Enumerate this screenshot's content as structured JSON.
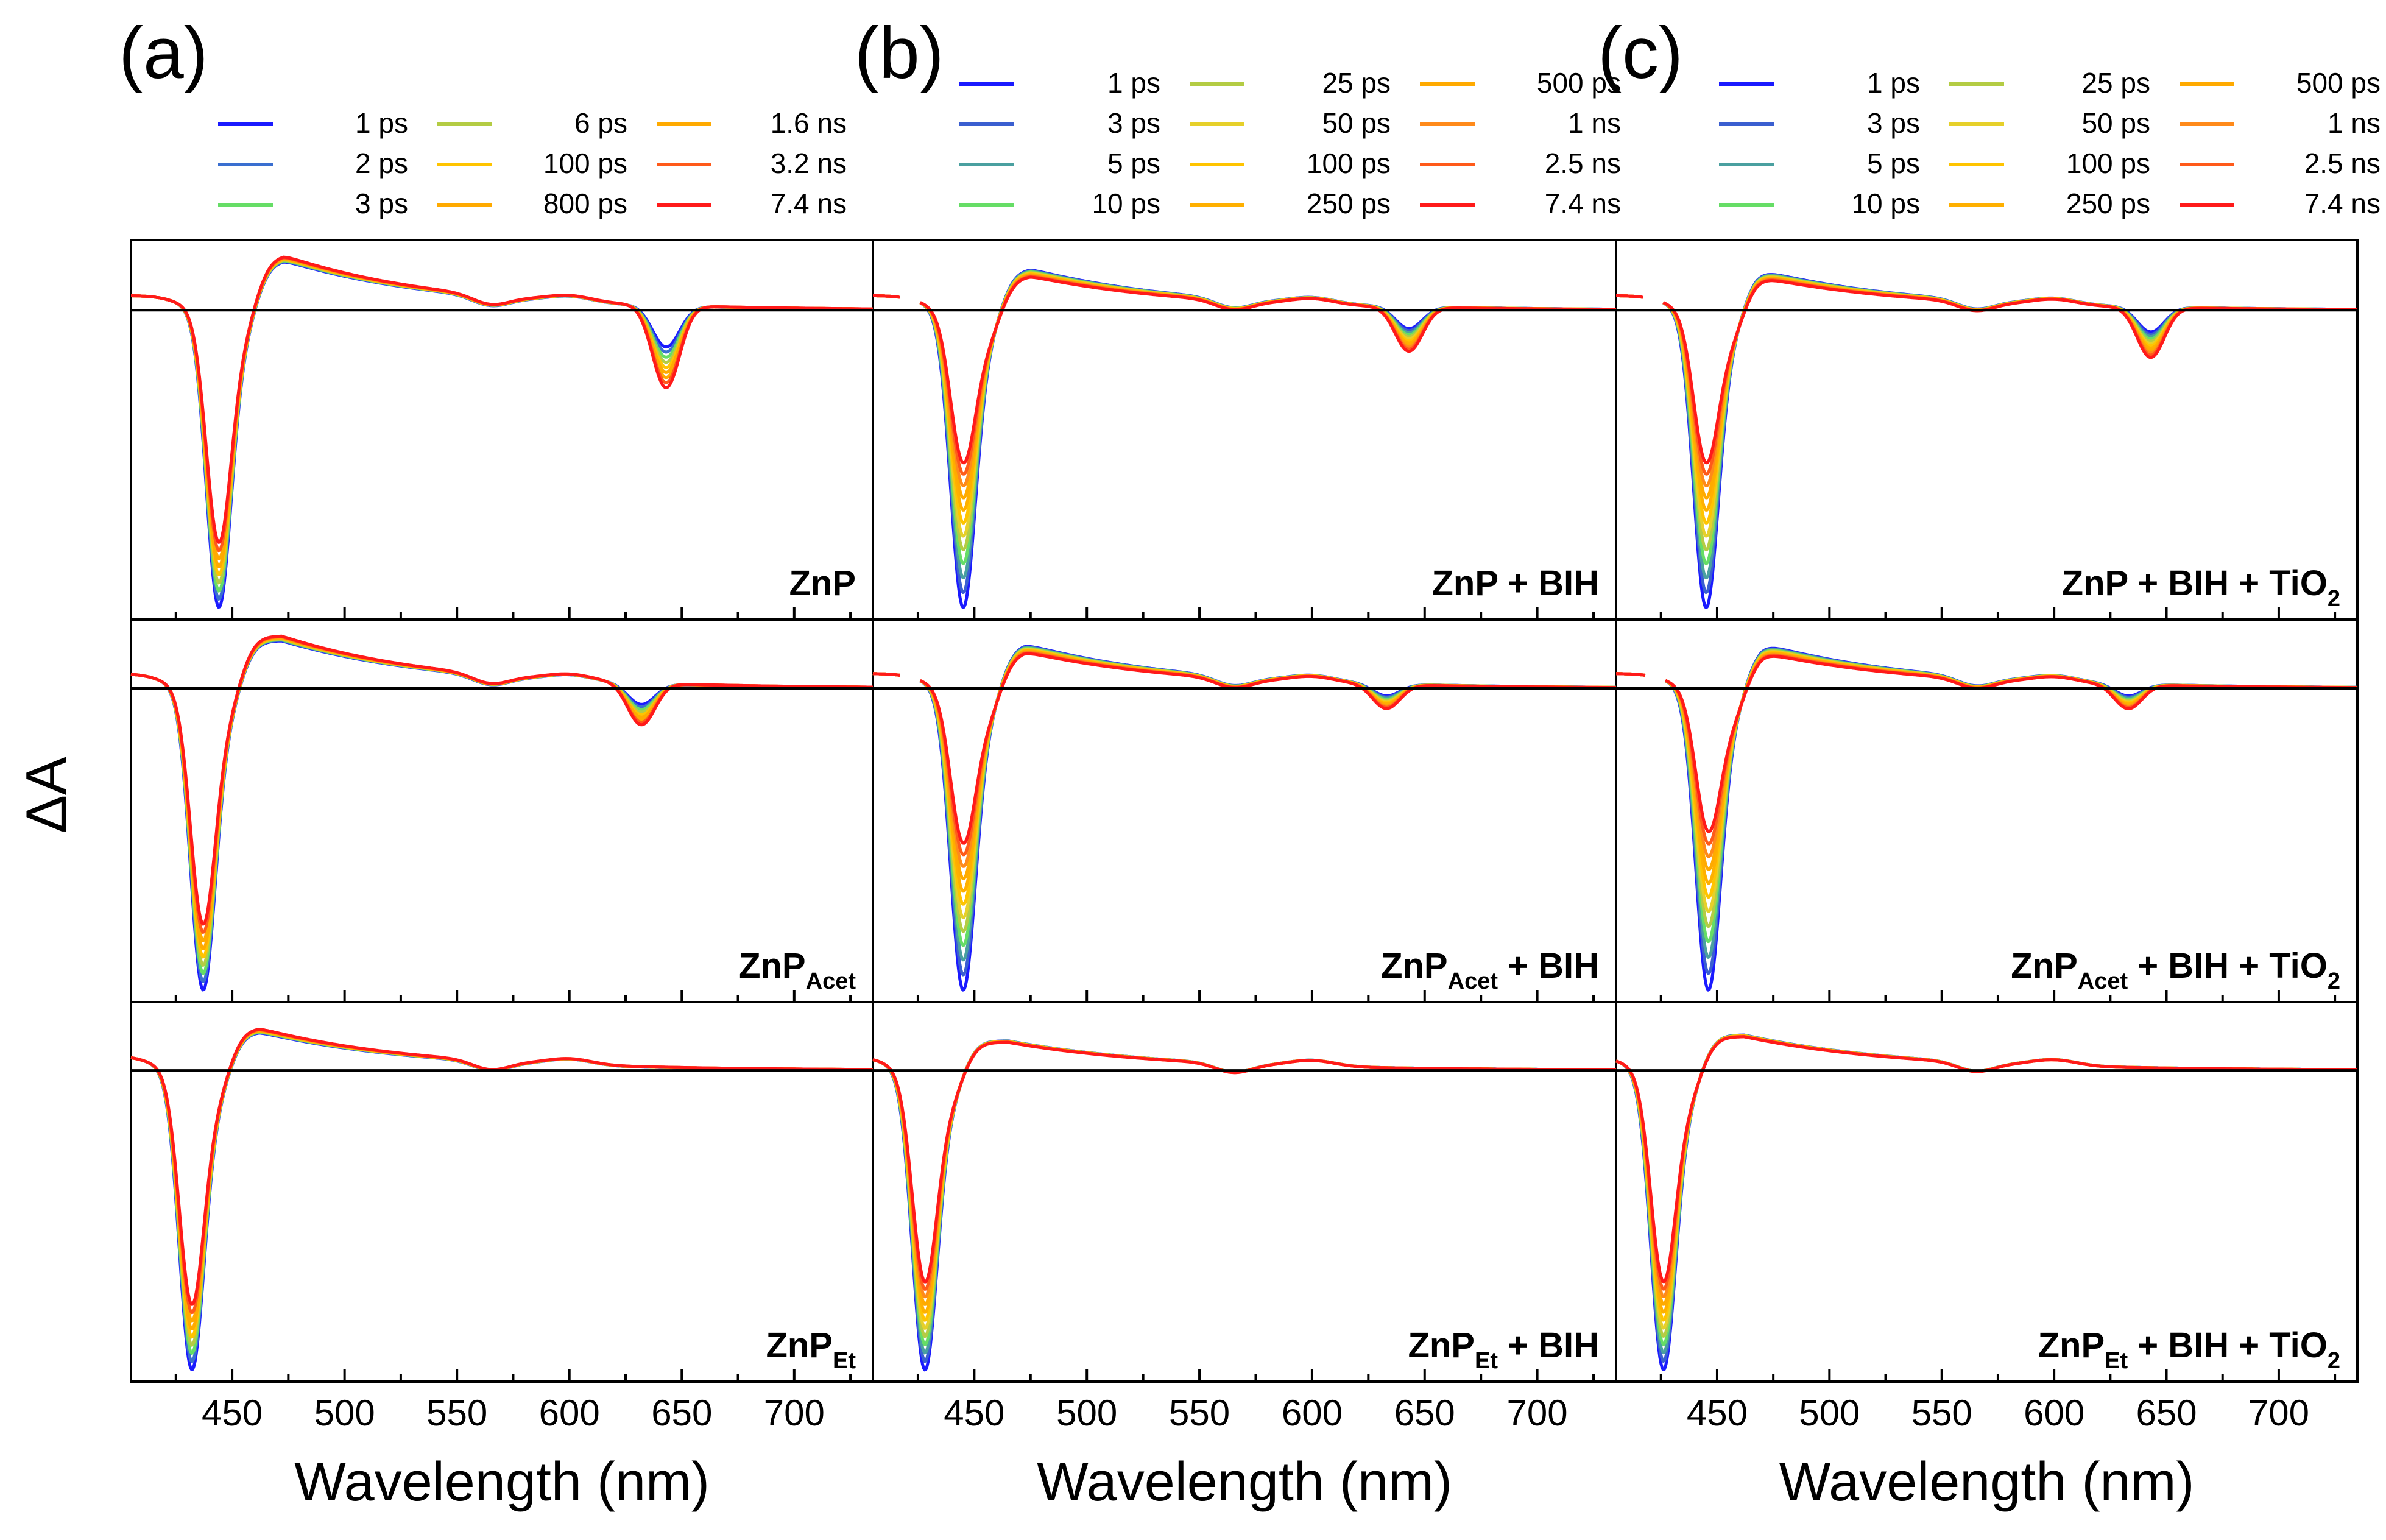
{
  "figure": {
    "y_axis_label": "ΔA",
    "panel_labels": [
      "(a)",
      "(b)",
      "(c)"
    ],
    "x_axis_title": "Wavelength (nm)"
  },
  "legends": [
    {
      "panel": "(a)",
      "entries": [
        {
          "label": "1 ps",
          "color": "#1a1aff"
        },
        {
          "label": "2 ps",
          "color": "#3a6fd0"
        },
        {
          "label": "3 ps",
          "color": "#66dd66"
        },
        {
          "label": "6 ps",
          "color": "#b4cc44"
        },
        {
          "label": "100 ps",
          "color": "#ffc400"
        },
        {
          "label": "800 ps",
          "color": "#ffaa00"
        },
        {
          "label": "1.6 ns",
          "color": "#ffaa00"
        },
        {
          "label": "3.2 ns",
          "color": "#ff5a1a"
        },
        {
          "label": "7.4 ns",
          "color": "#ff1a1a"
        }
      ]
    },
    {
      "panel": "(b)",
      "entries": [
        {
          "label": "1 ps",
          "color": "#1a1aff"
        },
        {
          "label": "3 ps",
          "color": "#3a5fd0"
        },
        {
          "label": "5 ps",
          "color": "#4aa0a0"
        },
        {
          "label": "10 ps",
          "color": "#66dd66"
        },
        {
          "label": "25 ps",
          "color": "#b4cc44"
        },
        {
          "label": "50 ps",
          "color": "#e6d02a"
        },
        {
          "label": "100 ps",
          "color": "#ffc400"
        },
        {
          "label": "250 ps",
          "color": "#ffb000"
        },
        {
          "label": "500 ps",
          "color": "#ffaa00"
        },
        {
          "label": "1 ns",
          "color": "#ff8a1a"
        },
        {
          "label": "2.5 ns",
          "color": "#ff5a1a"
        },
        {
          "label": "7.4 ns",
          "color": "#ff1a1a"
        }
      ]
    },
    {
      "panel": "(c)",
      "entries": [
        {
          "label": "1 ps",
          "color": "#1a1aff"
        },
        {
          "label": "3 ps",
          "color": "#3a5fd0"
        },
        {
          "label": "5 ps",
          "color": "#4aa0a0"
        },
        {
          "label": "10 ps",
          "color": "#66dd66"
        },
        {
          "label": "25 ps",
          "color": "#b4cc44"
        },
        {
          "label": "50 ps",
          "color": "#e6d02a"
        },
        {
          "label": "100 ps",
          "color": "#ffc400"
        },
        {
          "label": "250 ps",
          "color": "#ffb000"
        },
        {
          "label": "500 ps",
          "color": "#ffaa00"
        },
        {
          "label": "1 ns",
          "color": "#ff8a1a"
        },
        {
          "label": "2.5 ns",
          "color": "#ff5a1a"
        },
        {
          "label": "7.4 ns",
          "color": "#ff1a1a"
        }
      ]
    }
  ],
  "chart_data": [
    {
      "type": "line",
      "title": "(a)",
      "xlabel": "Wavelength (nm)",
      "ylabel": "ΔA",
      "xlim": [
        405,
        735
      ],
      "xticks": [
        450,
        500,
        550,
        600,
        650,
        700
      ],
      "rows": [
        {
          "sample": "ZnP",
          "subscript": "",
          "suffix": "",
          "bleach_nm": 444,
          "bleach_depth": 1.0,
          "qband_nm": 643,
          "qband_depth": 0.28,
          "esa_peak_nm": 473,
          "esa_height": 0.17,
          "early_decay": 0.0
        },
        {
          "sample": "ZnP",
          "subscript": "Acet",
          "suffix": "",
          "bleach_nm": 437,
          "bleach_depth": 1.0,
          "qband_nm": 632,
          "qband_depth": 0.14,
          "esa_peak_nm": 472,
          "esa_height": 0.16,
          "early_decay": 0.0
        },
        {
          "sample": "ZnP",
          "subscript": "Et",
          "suffix": "",
          "bleach_nm": 432,
          "bleach_depth": 1.0,
          "qband_nm": 645,
          "qband_depth": 0.0,
          "esa_peak_nm": 462,
          "esa_height": 0.13,
          "early_decay": 0.0
        }
      ]
    },
    {
      "type": "line",
      "title": "(b)",
      "xlabel": "Wavelength (nm)",
      "ylabel": "ΔA",
      "xlim": [
        405,
        735
      ],
      "xticks": [
        450,
        500,
        550,
        600,
        650,
        700
      ],
      "rows": [
        {
          "sample": "ZnP",
          "subscript": "",
          "suffix": " + BIH",
          "bleach_nm": 445,
          "bleach_depth": 1.0,
          "qband_nm": 643,
          "qband_depth": 0.15,
          "esa_peak_nm": 475,
          "esa_height": 0.14,
          "early_decay": 0.55
        },
        {
          "sample": "ZnP",
          "subscript": "Acet",
          "suffix": " + BIH",
          "bleach_nm": 445,
          "bleach_depth": 1.0,
          "qband_nm": 633,
          "qband_depth": 0.08,
          "esa_peak_nm": 472,
          "esa_height": 0.15,
          "early_decay": 0.55
        },
        {
          "sample": "ZnP",
          "subscript": "Et",
          "suffix": " + BIH",
          "bleach_nm": 428,
          "bleach_depth": 1.0,
          "qband_nm": 645,
          "qband_depth": 0.0,
          "esa_peak_nm": 465,
          "esa_height": 0.1,
          "early_decay": 0.3
        }
      ]
    },
    {
      "type": "line",
      "title": "(c)",
      "xlabel": "Wavelength (nm)",
      "ylabel": "ΔA",
      "xlim": [
        405,
        735
      ],
      "xticks": [
        450,
        500,
        550,
        600,
        650,
        700
      ],
      "rows": [
        {
          "sample": "ZnP",
          "subscript": "",
          "suffix": " + BIH + TiO",
          "suffix_sub": "2",
          "bleach_nm": 445,
          "bleach_depth": 1.0,
          "qband_nm": 643,
          "qband_depth": 0.17,
          "esa_peak_nm": 467,
          "esa_height": 0.14,
          "early_decay": 0.55
        },
        {
          "sample": "ZnP",
          "subscript": "Acet",
          "suffix": " + BIH + TiO",
          "suffix_sub": "2",
          "bleach_nm": 446,
          "bleach_depth": 1.0,
          "qband_nm": 633,
          "qband_depth": 0.08,
          "esa_peak_nm": 470,
          "esa_height": 0.15,
          "early_decay": 0.6
        },
        {
          "sample": "ZnP",
          "subscript": "Et",
          "suffix": " + BIH + TiO",
          "suffix_sub": "2",
          "bleach_nm": 426,
          "bleach_depth": 1.0,
          "qband_nm": 645,
          "qband_depth": 0.0,
          "esa_peak_nm": 462,
          "esa_height": 0.12,
          "early_decay": 0.3
        }
      ]
    }
  ]
}
